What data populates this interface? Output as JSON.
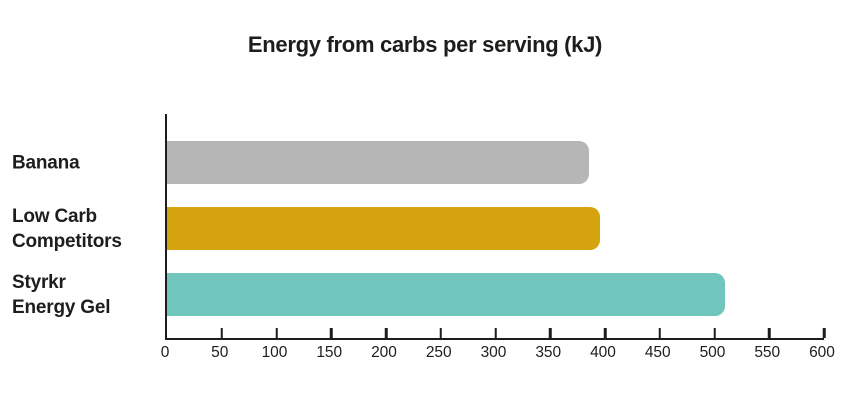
{
  "chart_data": {
    "type": "bar",
    "orientation": "horizontal",
    "title": "Energy from carbs per serving (kJ)",
    "xlabel": "",
    "ylabel": "",
    "grid": false,
    "legend": false,
    "axis": {
      "min": 0,
      "max": 600,
      "tick_step": 50,
      "tick_values": [
        0,
        50,
        100,
        150,
        200,
        250,
        300,
        350,
        400,
        450,
        500,
        550,
        600
      ]
    },
    "categories": [
      "Banana",
      "Low Carb Competitors",
      "Styrkr Energy Gel"
    ],
    "values": [
      385,
      395,
      510
    ],
    "bars": [
      {
        "category": "Banana",
        "label_lines": [
          "Banana"
        ],
        "value": 385,
        "color": "#b6b6b6"
      },
      {
        "category": "Low Carb Competitors",
        "label_lines": [
          "Low Carb",
          "Competitors"
        ],
        "value": 395,
        "color": "#d5a30d"
      },
      {
        "category": "Styrkr Energy Gel",
        "label_lines": [
          "Styrkr",
          "Energy Gel"
        ],
        "value": 510,
        "color": "#70c5bc"
      }
    ]
  },
  "colors": {
    "background": "#ffffff",
    "text": "#1d1d1b",
    "axis": "#1d1d1b",
    "bar_banana": "#b6b6b6",
    "bar_low_carb_competitors": "#d5a30d",
    "bar_styrkr_energy_gel": "#70c5bc"
  }
}
